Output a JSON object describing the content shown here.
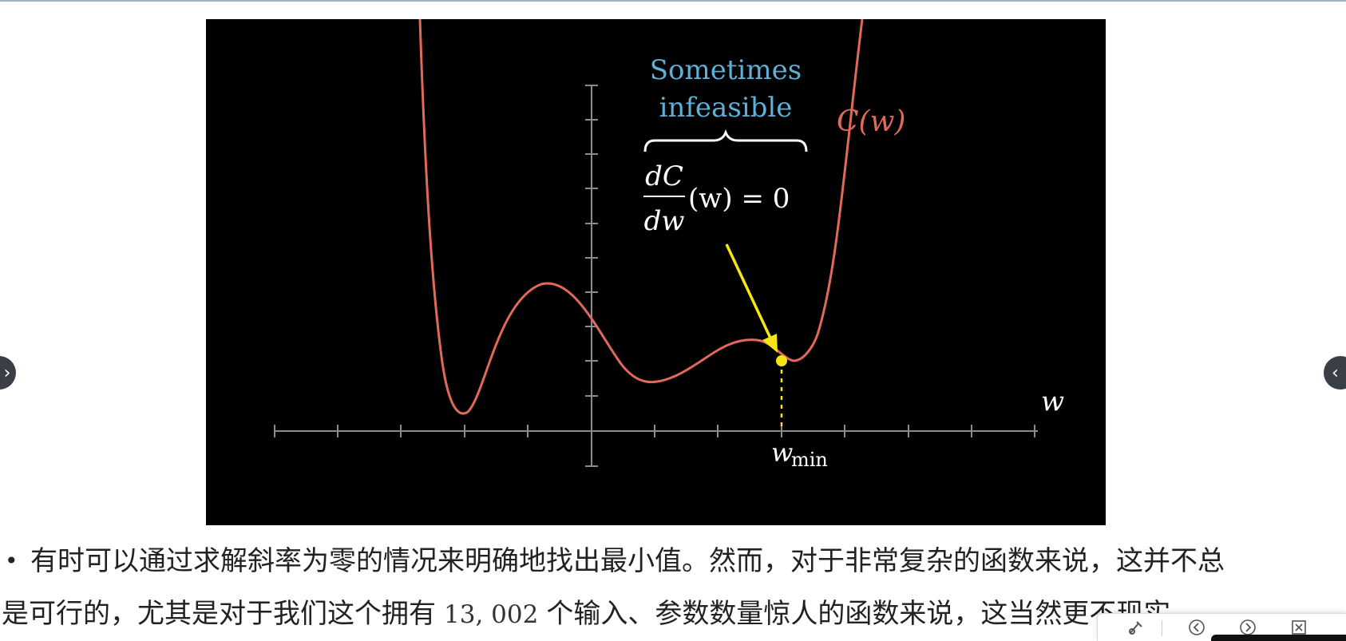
{
  "figure": {
    "curve_label": "C(w)",
    "brace_text_line1": "Sometimes",
    "brace_text_line2": "infeasible",
    "eq_numerator": "dC",
    "eq_denominator": "dw",
    "eq_rest": "(w) = 0",
    "x_axis_label": "w",
    "min_label_main": "w",
    "min_label_sub": "min",
    "colors": {
      "curve": "#e0695a",
      "annotation": "#5fb0d8",
      "arrow": "#f5e616",
      "axis": "#8c8c8c",
      "background": "#000000"
    }
  },
  "caption": {
    "line1": "有时可以通过求解斜率为零的情况来明确地找出最小值。然而，对于非常复杂的函数来说，这并不总",
    "line2_before": "是可行的，尤其是对于我们这个拥有",
    "line2_number": "13, 002",
    "line2_after": "个输入、参数数量惊人的函数来说，这当然更不现实"
  },
  "nav": {
    "left_icon": "chevron-right-icon",
    "right_icon": "chevron-left-icon"
  },
  "toolbar": {
    "icons": [
      "brush-icon",
      "prev-icon",
      "next-icon",
      "close-box-icon"
    ]
  }
}
